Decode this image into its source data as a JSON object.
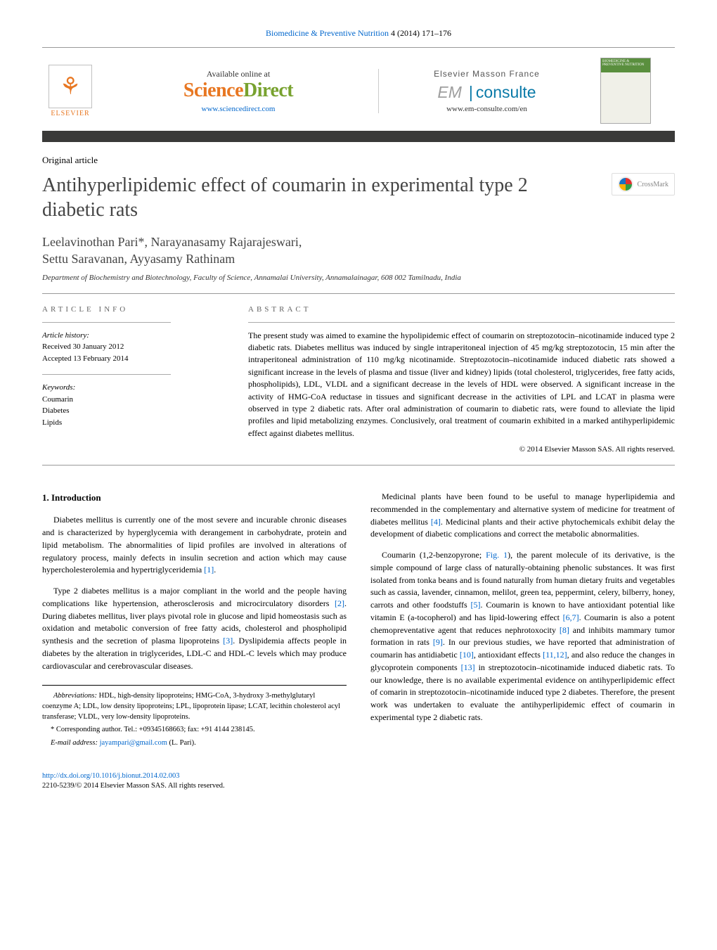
{
  "journal_header": {
    "journal": "Biomedicine & Preventive Nutrition",
    "citation": "4 (2014) 171–176"
  },
  "topband": {
    "elsevier_label": "ELSEVIER",
    "available_text": "Available online at",
    "sd_science": "Science",
    "sd_direct": "Direct",
    "sd_url": "www.sciencedirect.com",
    "emf_label": "Elsevier Masson France",
    "em_prefix": "EM",
    "em_suffix": "consulte",
    "em_url": "www.em-consulte.com/en",
    "cover_title": "BIOMEDICINE & PREVENTIVE NUTRITION"
  },
  "article": {
    "type": "Original article",
    "title": "Antihyperlipidemic effect of coumarin in experimental type 2 diabetic rats",
    "crossmark": "CrossMark",
    "authors_line1": "Leelavinothan Pari*, Narayanasamy Rajarajeswari,",
    "authors_line2": "Settu Saravanan, Ayyasamy Rathinam",
    "affiliation": "Department of Biochemistry and Biotechnology, Faculty of Science, Annamalai University, Annamalainagar, 608 002 Tamilnadu, India"
  },
  "article_info": {
    "heading": "article info",
    "history_label": "Article history:",
    "received": "Received 30 January 2012",
    "accepted": "Accepted 13 February 2014",
    "keywords_label": "Keywords:",
    "keywords": [
      "Coumarin",
      "Diabetes",
      "Lipids"
    ]
  },
  "abstract": {
    "heading": "abstract",
    "text": "The present study was aimed to examine the hypolipidemic effect of coumarin on streptozotocin–nicotinamide induced type 2 diabetic rats. Diabetes mellitus was induced by single intraperitoneal injection of 45 mg/kg streptozotocin, 15 min after the intraperitoneal administration of 110 mg/kg nicotinamide. Streptozotocin–nicotinamide induced diabetic rats showed a significant increase in the levels of plasma and tissue (liver and kidney) lipids (total cholesterol, triglycerides, free fatty acids, phospholipids), LDL, VLDL and a significant decrease in the levels of HDL were observed. A significant increase in the activity of HMG-CoA reductase in tissues and significant decrease in the activities of LPL and LCAT in plasma were observed in type 2 diabetic rats. After oral administration of coumarin to diabetic rats, were found to alleviate the lipid profiles and lipid metabolizing enzymes. Conclusively, oral treatment of coumarin exhibited in a marked antihyperlipidemic effect against diabetes mellitus.",
    "copyright": "© 2014 Elsevier Masson SAS. All rights reserved."
  },
  "body": {
    "intro_heading": "1. Introduction",
    "left_paras": [
      "Diabetes mellitus is currently one of the most severe and incurable chronic diseases and is characterized by hyperglycemia with derangement in carbohydrate, protein and lipid metabolism. The abnormalities of lipid profiles are involved in alterations of regulatory process, mainly defects in insulin secretion and action which may cause hypercholesterolemia and hypertriglyceridemia [1].",
      "Type 2 diabetes mellitus is a major compliant in the world and the people having complications like hypertension, atherosclerosis and microcirculatory disorders [2]. During diabetes mellitus, liver plays pivotal role in glucose and lipid homeostasis such as oxidation and metabolic conversion of free fatty acids, cholesterol and phospholipid synthesis and the secretion of plasma lipoproteins [3]. Dyslipidemia affects people in diabetes by the alteration in triglycerides, LDL-C and HDL-C levels which may produce cardiovascular and cerebrovascular diseases."
    ],
    "right_paras": [
      "Medicinal plants have been found to be useful to manage hyperlipidemia and recommended in the complementary and alternative system of medicine for treatment of diabetes mellitus [4]. Medicinal plants and their active phytochemicals exhibit delay the development of diabetic complications and correct the metabolic abnormalities.",
      "Coumarin (1,2-benzopyrone; Fig. 1), the parent molecule of its derivative, is the simple compound of large class of naturally-obtaining phenolic substances. It was first isolated from tonka beans and is found naturally from human dietary fruits and vegetables such as cassia, lavender, cinnamon, melilot, green tea, peppermint, celery, bilberry, honey, carrots and other foodstuffs [5]. Coumarin is known to have antioxidant potential like vitamin E (a-tocopherol) and has lipid-lowering effect [6,7]. Coumarin is also a potent chemopreventative agent that reduces nephrotoxocity [8] and inhibits mammary tumor formation in rats [9]. In our previous studies, we have reported that administration of coumarin has antidiabetic [10], antioxidant effects [11,12], and also reduce the changes in glycoprotein components [13] in streptozotocin–nicotinamide induced diabetic rats. To our knowledge, there is no available experimental evidence on antihyperlipidemic effect of comarin in streptozotocin–nicotinamide induced type 2 diabetes. Therefore, the present work was undertaken to evaluate the antihyperlipidemic effect of coumarin in experimental type 2 diabetic rats."
    ]
  },
  "footnotes": {
    "abbrev_label": "Abbreviations:",
    "abbrev": "HDL, high-density lipoproteins; HMG-CoA, 3-hydroxy 3-methylglutaryl coenzyme A; LDL, low density lipoproteins; LPL, lipoprotein lipase; LCAT, lecithin cholesterol acyl transferase; VLDL, very low-density lipoproteins.",
    "corresponding": "* Corresponding author. Tel.: +09345168663; fax: +91 4144 238145.",
    "email_label": "E-mail address:",
    "email": "jayampari@gmail.com",
    "email_paren": "(L. Pari)."
  },
  "doi": {
    "url": "http://dx.doi.org/10.1016/j.bionut.2014.02.003",
    "issn_line": "2210-5239/© 2014 Elsevier Masson SAS. All rights reserved."
  },
  "colors": {
    "link": "#0066cc",
    "elsevier_orange": "#e87722",
    "sd_green": "#78a22f",
    "band_dark": "#3a3a39",
    "title_gray": "#444444"
  }
}
